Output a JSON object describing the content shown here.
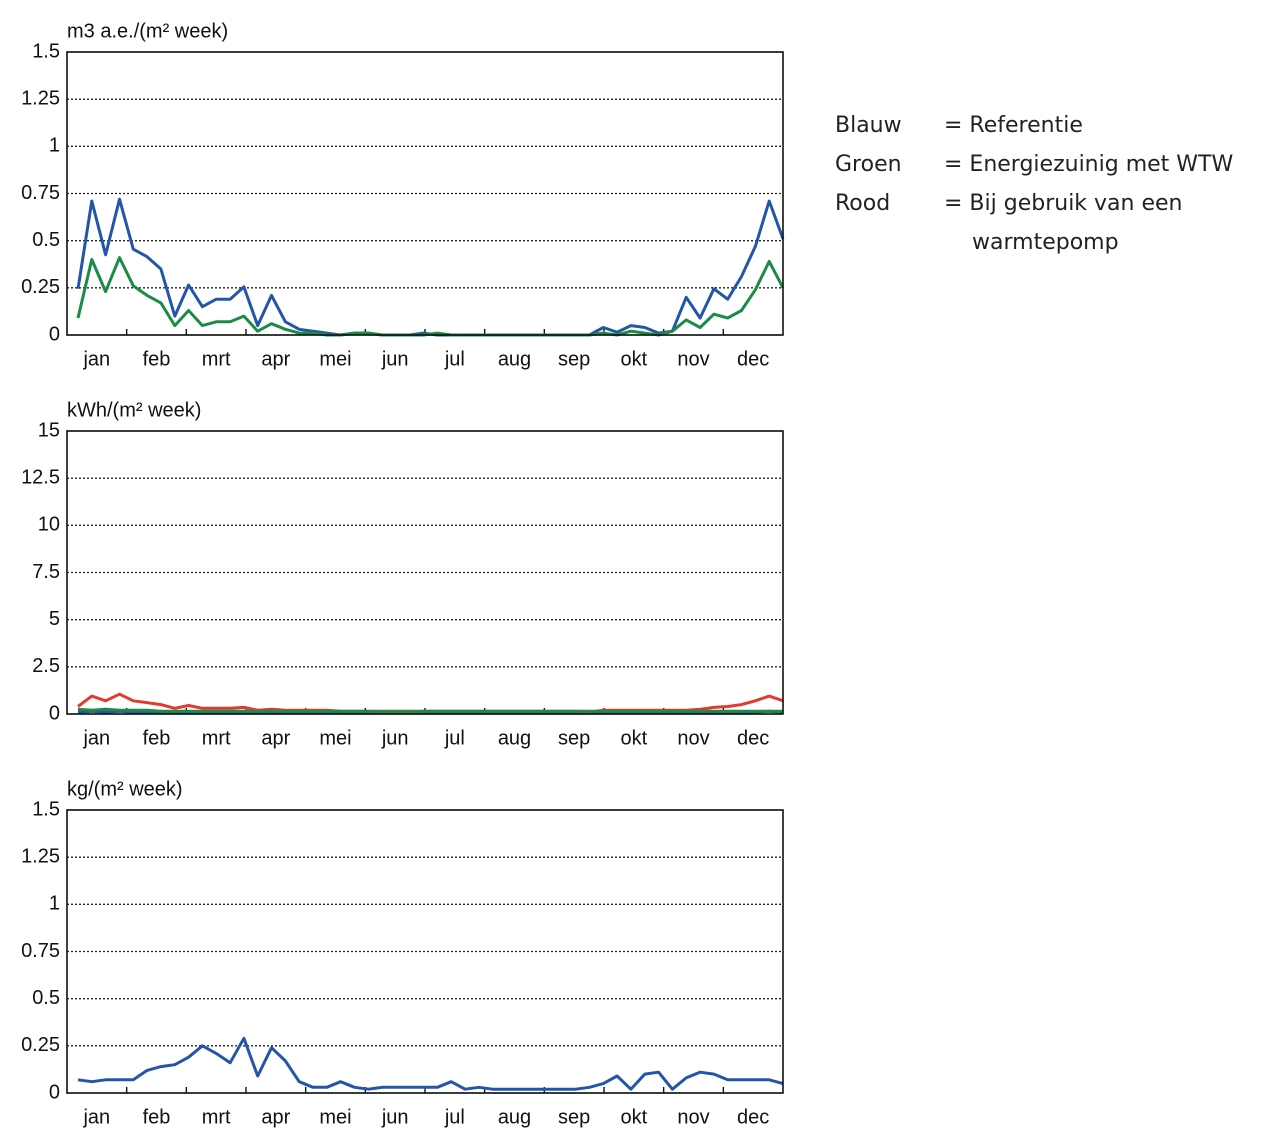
{
  "chart_data": [
    {
      "type": "line",
      "y_label": "m3 a.e./(m² week)",
      "months": [
        "jan",
        "feb",
        "mrt",
        "apr",
        "mei",
        "jun",
        "jul",
        "aug",
        "sep",
        "okt",
        "nov",
        "dec"
      ],
      "ylim": [
        0,
        1.5
      ],
      "yticks": [
        0,
        0.25,
        0.5,
        0.75,
        1,
        1.25,
        1.5
      ],
      "grid": true,
      "series": [
        {
          "color": "#2356a8",
          "values": [
            0.245,
            0.71,
            0.425,
            0.72,
            0.455,
            0.415,
            0.35,
            0.1,
            0.265,
            0.15,
            0.19,
            0.19,
            0.255,
            0.05,
            0.21,
            0.07,
            0.03,
            0.02,
            0.01,
            0,
            0.01,
            0.01,
            0,
            0,
            0,
            0.01,
            0,
            0,
            0,
            0,
            0,
            0,
            0,
            0,
            0,
            0,
            0,
            0,
            0.04,
            0.015,
            0.05,
            0.04,
            0.01,
            0.02,
            0.2,
            0.09,
            0.245,
            0.19,
            0.31,
            0.47,
            0.71,
            0.51
          ]
        },
        {
          "color": "#1b8c45",
          "values": [
            0.09,
            0.4,
            0.23,
            0.41,
            0.26,
            0.21,
            0.17,
            0.05,
            0.13,
            0.05,
            0.07,
            0.07,
            0.1,
            0.02,
            0.06,
            0.03,
            0.01,
            0.01,
            0,
            0,
            0.01,
            0.01,
            0,
            0,
            0,
            0,
            0.01,
            0,
            0,
            0,
            0,
            0,
            0,
            0,
            0,
            0,
            0,
            0,
            0.01,
            0,
            0.02,
            0.01,
            0,
            0.02,
            0.08,
            0.04,
            0.11,
            0.09,
            0.13,
            0.24,
            0.39,
            0.25
          ]
        }
      ]
    },
    {
      "type": "line",
      "y_label": "kWh/(m² week)",
      "months": [
        "jan",
        "feb",
        "mrt",
        "apr",
        "mei",
        "jun",
        "jul",
        "aug",
        "sep",
        "okt",
        "nov",
        "dec"
      ],
      "ylim": [
        0,
        15
      ],
      "yticks": [
        0,
        2.5,
        5,
        7.5,
        10,
        12.5,
        15
      ],
      "grid": true,
      "series": [
        {
          "color": "#2356a8",
          "values": [
            0.1,
            0.15,
            0.1,
            0.15,
            0.1,
            0.1,
            0.1,
            0.05,
            0.1,
            0.05,
            0.05,
            0.05,
            0.1,
            0.05,
            0.05,
            0.05,
            0.05,
            0.05,
            0.05,
            0.05,
            0.05,
            0.05,
            0.05,
            0.05,
            0.05,
            0.05,
            0.05,
            0.05,
            0.05,
            0.05,
            0.05,
            0.05,
            0.05,
            0.05,
            0.05,
            0.05,
            0.05,
            0.05,
            0.05,
            0.05,
            0.05,
            0.05,
            0.05,
            0.05,
            0.1,
            0.05,
            0.1,
            0.1,
            0.1,
            0.1,
            0.15,
            0.1
          ]
        },
        {
          "color": "#e33a2e",
          "values": [
            0.4,
            0.95,
            0.7,
            1.05,
            0.7,
            0.6,
            0.5,
            0.3,
            0.45,
            0.3,
            0.3,
            0.3,
            0.35,
            0.2,
            0.25,
            0.2,
            0.2,
            0.2,
            0.2,
            0.15,
            0.15,
            0.15,
            0.1,
            0.1,
            0.1,
            0.15,
            0.15,
            0.15,
            0.15,
            0.15,
            0.15,
            0.15,
            0.15,
            0.15,
            0.15,
            0.15,
            0.15,
            0.1,
            0.2,
            0.2,
            0.2,
            0.2,
            0.2,
            0.2,
            0.2,
            0.25,
            0.35,
            0.4,
            0.5,
            0.7,
            0.95,
            0.7
          ]
        },
        {
          "color": "#1b8c45",
          "values": [
            0.25,
            0.2,
            0.25,
            0.2,
            0.2,
            0.2,
            0.15,
            0.15,
            0.15,
            0.15,
            0.15,
            0.15,
            0.15,
            0.15,
            0.15,
            0.15,
            0.15,
            0.15,
            0.15,
            0.15,
            0.15,
            0.15,
            0.15,
            0.15,
            0.15,
            0.15,
            0.15,
            0.15,
            0.15,
            0.15,
            0.15,
            0.15,
            0.15,
            0.15,
            0.15,
            0.15,
            0.15,
            0.15,
            0.15,
            0.15,
            0.15,
            0.15,
            0.15,
            0.15,
            0.15,
            0.15,
            0.15,
            0.15,
            0.15,
            0.15,
            0.15,
            0.15
          ]
        }
      ]
    },
    {
      "type": "line",
      "y_label": "kg/(m² week)",
      "months": [
        "jan",
        "feb",
        "mrt",
        "apr",
        "mei",
        "jun",
        "jul",
        "aug",
        "sep",
        "okt",
        "nov",
        "dec"
      ],
      "ylim": [
        0,
        1.5
      ],
      "yticks": [
        0,
        0.25,
        0.5,
        0.75,
        1,
        1.25,
        1.5
      ],
      "grid": true,
      "series": [
        {
          "color": "#2356a8",
          "values": [
            0.07,
            0.06,
            0.07,
            0.07,
            0.07,
            0.12,
            0.14,
            0.15,
            0.19,
            0.25,
            0.21,
            0.16,
            0.29,
            0.09,
            0.24,
            0.17,
            0.06,
            0.03,
            0.03,
            0.06,
            0.03,
            0.02,
            0.03,
            0.03,
            0.03,
            0.03,
            0.03,
            0.06,
            0.02,
            0.03,
            0.02,
            0.02,
            0.02,
            0.02,
            0.02,
            0.02,
            0.02,
            0.03,
            0.05,
            0.09,
            0.02,
            0.1,
            0.11,
            0.02,
            0.08,
            0.11,
            0.1,
            0.07,
            0.07,
            0.07,
            0.07,
            0.05
          ]
        }
      ]
    }
  ],
  "legend": [
    {
      "label": "Blauw",
      "text": [
        "= Referentie"
      ]
    },
    {
      "label": "Groen",
      "text": [
        "= Energiezuinig met WTW"
      ]
    },
    {
      "label": "Rood",
      "text": [
        "= Bij gebruik van een",
        "warmtepomp"
      ]
    }
  ]
}
